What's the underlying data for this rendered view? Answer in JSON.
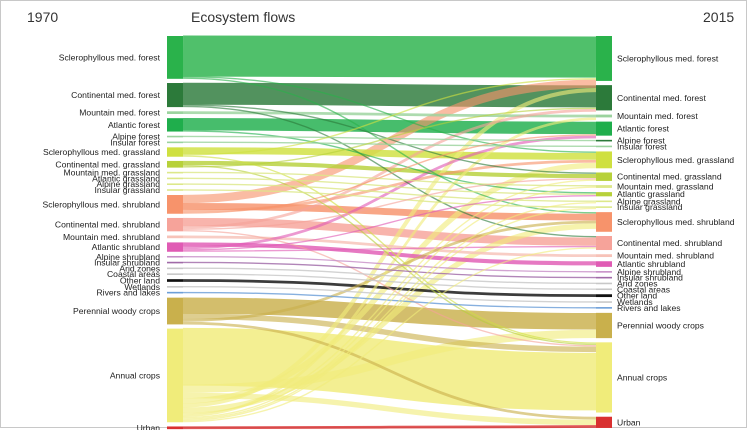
{
  "header": {
    "year_left": "1970",
    "title": "Ecosystem flows",
    "year_right": "2015"
  },
  "colors": {
    "forest_green": "#2ab24b",
    "dark_green": "#2c7a3a",
    "grassland_yellowgreen": "#c9dc3c",
    "shrub_orange": "#f7936b",
    "shrub_pink": "#f49ab0",
    "atlantic_shrub_magenta": "#e05bb4",
    "perennial_olive": "#c9b04c",
    "annual_yellow": "#f0ec7a",
    "urban_red": "#d93030"
  },
  "left_nodes": [
    {
      "label": "Sclerophyllous med. forest",
      "color": "#2ab24b",
      "size": 32
    },
    {
      "label": "Continental med. forest",
      "color": "#2c7a3a",
      "size": 18
    },
    {
      "label": "Mountain med. forest",
      "color": "#9bd39e",
      "size": 2
    },
    {
      "label": "Atlantic forest",
      "color": "#1fae4c",
      "size": 10
    },
    {
      "label": "Alpine forest",
      "color": "#9bd39e",
      "size": 1
    },
    {
      "label": "Insular forest",
      "color": "#9bd39e",
      "size": 1
    },
    {
      "label": "Sclerophyllous med. grassland",
      "color": "#cfe040",
      "size": 7
    },
    {
      "label": "Continental med. grassland",
      "color": "#b7d13a",
      "size": 5
    },
    {
      "label": "Mountain med. grassland",
      "color": "#dde88a",
      "size": 1
    },
    {
      "label": "Atlantic grassland",
      "color": "#dde88a",
      "size": 1
    },
    {
      "label": "Alpine grassland",
      "color": "#dde88a",
      "size": 1
    },
    {
      "label": "Insular grassland",
      "color": "#dde88a",
      "size": 1
    },
    {
      "label": "Sclerophyllous med. shrubland",
      "color": "#f7936b",
      "size": 14
    },
    {
      "label": "Continental med. shrubland",
      "color": "#f6a39a",
      "size": 10
    },
    {
      "label": "Mountain med. shrubland",
      "color": "#f7c2b8",
      "size": 2
    },
    {
      "label": "Atlantic shrubland",
      "color": "#e05bb4",
      "size": 7
    },
    {
      "label": "Alpine shrubland",
      "color": "#c890c8",
      "size": 1
    },
    {
      "label": "Insular shrubland",
      "color": "#a06aa8",
      "size": 1
    },
    {
      "label": "Arid zones",
      "color": "#c8c8c8",
      "size": 1
    },
    {
      "label": "Coastal areas",
      "color": "#c8c8c8",
      "size": 1
    },
    {
      "label": "Other land",
      "color": "#111111",
      "size": 2
    },
    {
      "label": "Wetlands",
      "color": "#c8c8c8",
      "size": 1
    },
    {
      "label": "Rivers and lakes",
      "color": "#6d9fd8",
      "size": 1
    },
    {
      "label": "Perennial woody crops",
      "color": "#c9b04c",
      "size": 20
    },
    {
      "label": "Annual crops",
      "color": "#f0ec7a",
      "size": 70
    },
    {
      "label": "Urban",
      "color": "#d93030",
      "size": 2
    }
  ],
  "right_nodes": [
    {
      "label": "Sclerophyllous med. forest",
      "color": "#2ab24b",
      "size": 32
    },
    {
      "label": "Continental med. forest",
      "color": "#2c7a3a",
      "size": 18
    },
    {
      "label": "Mountain med. forest",
      "color": "#9bd39e",
      "size": 2
    },
    {
      "label": "Atlantic forest",
      "color": "#1fae4c",
      "size": 10
    },
    {
      "label": "Alpine forest",
      "color": "#2c7a3a",
      "size": 1
    },
    {
      "label": "Insular forest",
      "color": "#9bd39e",
      "size": 1
    },
    {
      "label": "Sclerophyllous med. grassland",
      "color": "#cfe040",
      "size": 12
    },
    {
      "label": "Continental med. grassland",
      "color": "#b7d13a",
      "size": 6
    },
    {
      "label": "Mountain med. grassland",
      "color": "#dde88a",
      "size": 2
    },
    {
      "label": "Atlantic grassland",
      "color": "#b7d13a",
      "size": 3
    },
    {
      "label": "Alpine grassland",
      "color": "#dde88a",
      "size": 1
    },
    {
      "label": "Insular grassland",
      "color": "#dde88a",
      "size": 1
    },
    {
      "label": "Sclerophyllous med. shrubland",
      "color": "#f7936b",
      "size": 14
    },
    {
      "label": "Continental med. shrubland",
      "color": "#f6a39a",
      "size": 10
    },
    {
      "label": "Mountain med. shrubland",
      "color": "#f7c2b8",
      "size": 2
    },
    {
      "label": "Atlantic shrubland",
      "color": "#e05bb4",
      "size": 4
    },
    {
      "label": "Alpine shrubland",
      "color": "#c890c8",
      "size": 1
    },
    {
      "label": "Insular shrubland",
      "color": "#a06aa8",
      "size": 1
    },
    {
      "label": "Arid zones",
      "color": "#c8c8c8",
      "size": 1
    },
    {
      "label": "Coastal areas",
      "color": "#c8c8c8",
      "size": 1
    },
    {
      "label": "Other land",
      "color": "#111111",
      "size": 2
    },
    {
      "label": "Wetlands",
      "color": "#c8c8c8",
      "size": 1
    },
    {
      "label": "Rivers and lakes",
      "color": "#6d9fd8",
      "size": 1
    },
    {
      "label": "Perennial woody crops",
      "color": "#c9b04c",
      "size": 18
    },
    {
      "label": "Annual crops",
      "color": "#f0ec7a",
      "size": 50
    },
    {
      "label": "Urban",
      "color": "#d93030",
      "size": 8
    }
  ],
  "flows": [
    {
      "source": 0,
      "target": 0,
      "value": 30
    },
    {
      "source": 0,
      "target": 6,
      "value": 1
    },
    {
      "source": 0,
      "target": 12,
      "value": 1
    },
    {
      "source": 1,
      "target": 1,
      "value": 16
    },
    {
      "source": 1,
      "target": 7,
      "value": 1
    },
    {
      "source": 1,
      "target": 13,
      "value": 1
    },
    {
      "source": 2,
      "target": 2,
      "value": 2
    },
    {
      "source": 3,
      "target": 3,
      "value": 9
    },
    {
      "source": 3,
      "target": 9,
      "value": 1
    },
    {
      "source": 4,
      "target": 4,
      "value": 1
    },
    {
      "source": 5,
      "target": 5,
      "value": 1
    },
    {
      "source": 6,
      "target": 6,
      "value": 5
    },
    {
      "source": 6,
      "target": 0,
      "value": 1
    },
    {
      "source": 6,
      "target": 24,
      "value": 1
    },
    {
      "source": 7,
      "target": 7,
      "value": 3
    },
    {
      "source": 7,
      "target": 24,
      "value": 1
    },
    {
      "source": 7,
      "target": 1,
      "value": 1
    },
    {
      "source": 8,
      "target": 8,
      "value": 1
    },
    {
      "source": 9,
      "target": 9,
      "value": 1
    },
    {
      "source": 10,
      "target": 10,
      "value": 1
    },
    {
      "source": 11,
      "target": 11,
      "value": 1
    },
    {
      "source": 12,
      "target": 0,
      "value": 6
    },
    {
      "source": 12,
      "target": 12,
      "value": 5
    },
    {
      "source": 12,
      "target": 6,
      "value": 2
    },
    {
      "source": 12,
      "target": 3,
      "value": 1
    },
    {
      "source": 13,
      "target": 13,
      "value": 6
    },
    {
      "source": 13,
      "target": 1,
      "value": 2
    },
    {
      "source": 13,
      "target": 7,
      "value": 1
    },
    {
      "source": 13,
      "target": 24,
      "value": 1
    },
    {
      "source": 14,
      "target": 14,
      "value": 2
    },
    {
      "source": 15,
      "target": 15,
      "value": 3
    },
    {
      "source": 15,
      "target": 3,
      "value": 2
    },
    {
      "source": 15,
      "target": 9,
      "value": 1
    },
    {
      "source": 15,
      "target": 13,
      "value": 1
    },
    {
      "source": 16,
      "target": 16,
      "value": 1
    },
    {
      "source": 17,
      "target": 17,
      "value": 1
    },
    {
      "source": 18,
      "target": 18,
      "value": 1
    },
    {
      "source": 19,
      "target": 19,
      "value": 1
    },
    {
      "source": 20,
      "target": 20,
      "value": 2
    },
    {
      "source": 21,
      "target": 21,
      "value": 1
    },
    {
      "source": 22,
      "target": 22,
      "value": 1
    },
    {
      "source": 23,
      "target": 23,
      "value": 12
    },
    {
      "source": 23,
      "target": 24,
      "value": 4
    },
    {
      "source": 23,
      "target": 12,
      "value": 2
    },
    {
      "source": 23,
      "target": 25,
      "value": 2
    },
    {
      "source": 24,
      "target": 24,
      "value": 42
    },
    {
      "source": 24,
      "target": 23,
      "value": 6
    },
    {
      "source": 24,
      "target": 25,
      "value": 4
    },
    {
      "source": 24,
      "target": 6,
      "value": 4
    },
    {
      "source": 24,
      "target": 0,
      "value": 3
    },
    {
      "source": 24,
      "target": 12,
      "value": 4
    },
    {
      "source": 24,
      "target": 7,
      "value": 1
    },
    {
      "source": 24,
      "target": 2,
      "value": 2
    },
    {
      "source": 24,
      "target": 8,
      "value": 1
    },
    {
      "source": 24,
      "target": 10,
      "value": 1
    },
    {
      "source": 24,
      "target": 11,
      "value": 1
    },
    {
      "source": 24,
      "target": 13,
      "value": 1
    },
    {
      "source": 25,
      "target": 25,
      "value": 2
    }
  ]
}
